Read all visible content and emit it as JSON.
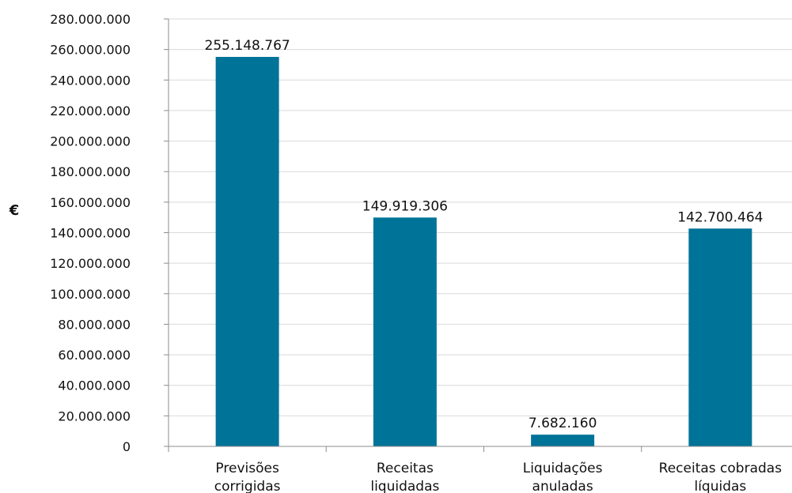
{
  "chart_data": {
    "type": "bar",
    "categories": [
      [
        "Previsões",
        "corrigidas"
      ],
      [
        "Receitas",
        "liquidadas"
      ],
      [
        "Liquidações",
        "anuladas"
      ],
      [
        "Receitas cobradas",
        "líquidas"
      ]
    ],
    "values": [
      255148767,
      149919306,
      7682160,
      142700464
    ],
    "data_labels": [
      "255.148.767",
      "149.919.306",
      "7.682.160",
      "142.700.464"
    ],
    "ylabel": "€",
    "ylim": [
      0,
      280000000
    ],
    "y_ticks": [
      0,
      20000000,
      40000000,
      60000000,
      80000000,
      100000000,
      120000000,
      140000000,
      160000000,
      180000000,
      200000000,
      220000000,
      240000000,
      260000000,
      280000000
    ],
    "y_tick_labels": [
      "0",
      "20.000.000",
      "40.000.000",
      "60.000.000",
      "80.000.000",
      "100.000.000",
      "120.000.000",
      "140.000.000",
      "160.000.000",
      "180.000.000",
      "200.000.000",
      "220.000.000",
      "240.000.000",
      "260.000.000",
      "280.000.000"
    ],
    "grid": true,
    "colors": {
      "bar": "#007398",
      "grid": "#d9d9d9",
      "axis": "#8c8c8c"
    }
  }
}
